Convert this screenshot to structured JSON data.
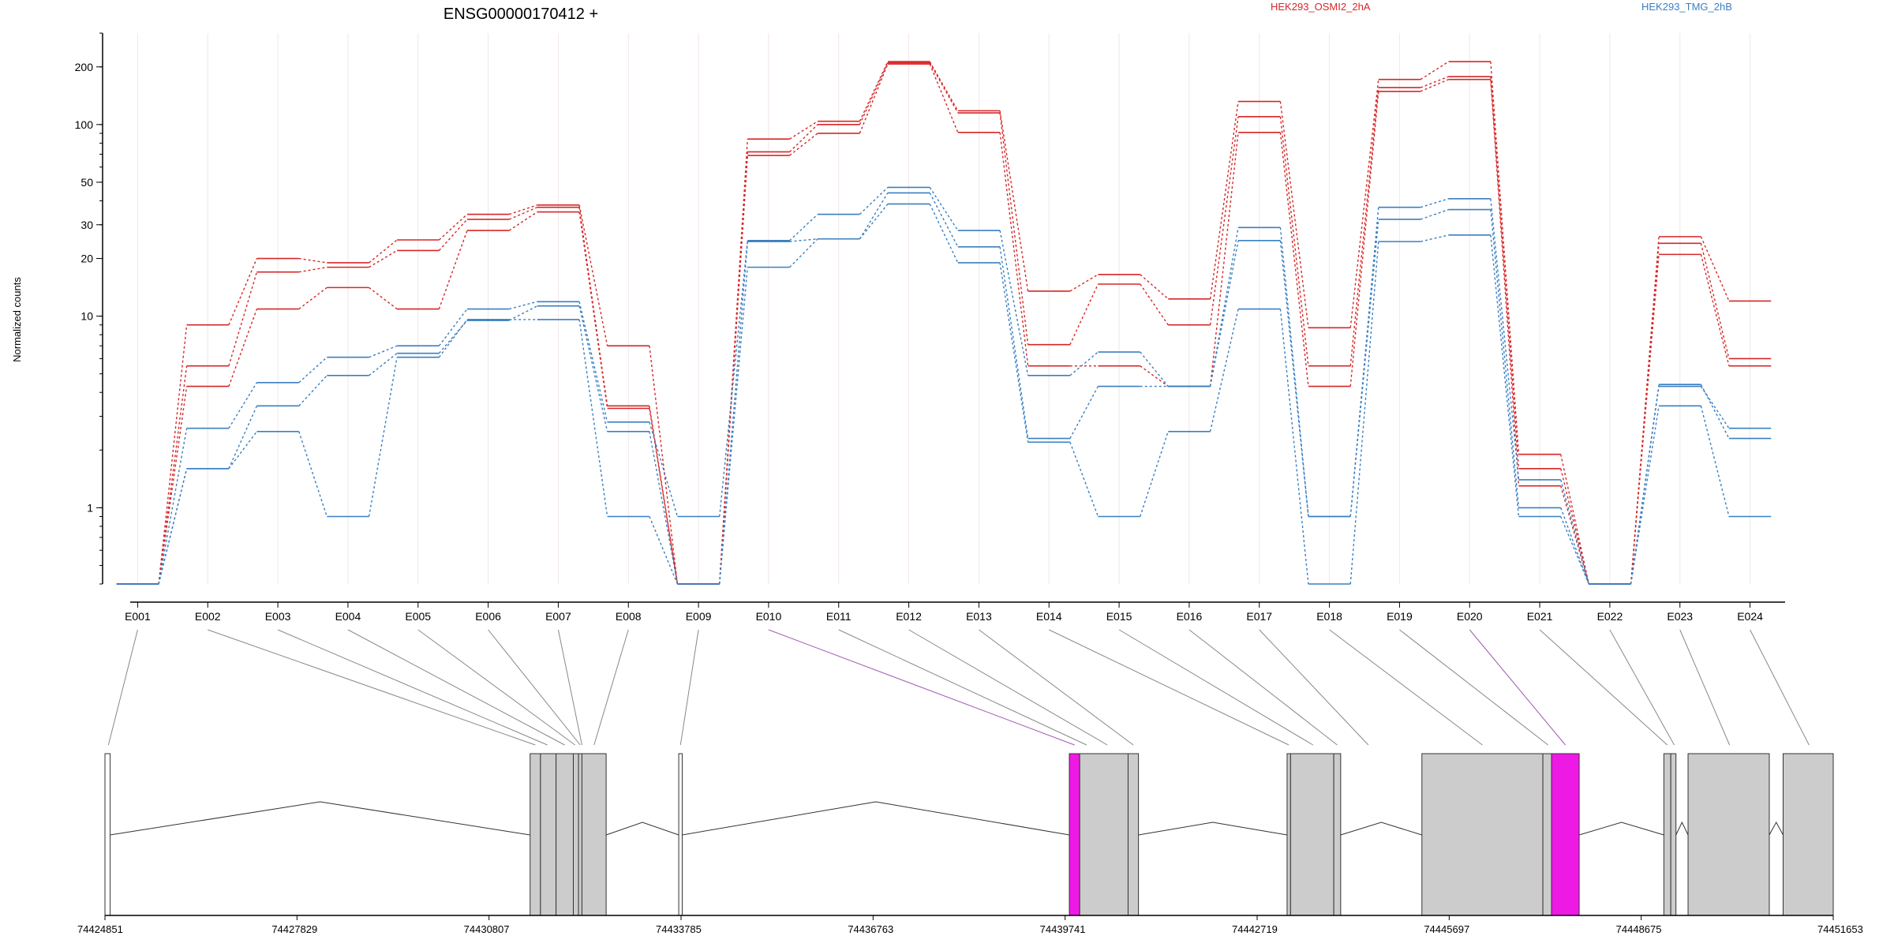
{
  "title": "ENSG00000170412 +",
  "ylabel": "Normalized counts",
  "legend": [
    {
      "label": "HEK293_OSMI2_2hA",
      "color": "#d62728"
    },
    {
      "label": "HEK293_TMG_2hB",
      "color": "#3a7fc1"
    }
  ],
  "chart_data": {
    "type": "line",
    "title": "ENSG00000170412 +",
    "xlabel": "",
    "ylabel": "Normalized counts",
    "yscale": "log",
    "ylim": [
      0.4,
      300
    ],
    "yticks": [
      1,
      10,
      20,
      30,
      50,
      100,
      200
    ],
    "grid": true,
    "legend_position": "top-right",
    "categories": [
      "E001",
      "E002",
      "E003",
      "E004",
      "E005",
      "E006",
      "E007",
      "E008",
      "E009",
      "E010",
      "E011",
      "E012",
      "E013",
      "E014",
      "E015",
      "E016",
      "E017",
      "E018",
      "E019",
      "E020",
      "E021",
      "E022",
      "E023",
      "E024"
    ],
    "series": [
      {
        "group": "HEK293_OSMI2_2hA",
        "color": "#d62728",
        "values": [
          0.4,
          9,
          20,
          19,
          25,
          34,
          38,
          7,
          0.4,
          84,
          104,
          213,
          118,
          13.5,
          16.5,
          12.3,
          132,
          8.7,
          172,
          213,
          1.9,
          0.4,
          26,
          12
        ]
      },
      {
        "group": "HEK293_OSMI2_2hA",
        "color": "#d62728",
        "values": [
          0.4,
          5.5,
          17,
          18,
          22,
          32,
          37,
          3.4,
          0.4,
          72,
          100,
          210,
          115,
          7.1,
          14.7,
          9.0,
          110,
          5.5,
          156,
          178,
          1.6,
          0.4,
          24,
          6
        ]
      },
      {
        "group": "HEK293_OSMI2_2hA",
        "color": "#d62728",
        "values": [
          0.4,
          4.3,
          10.9,
          14.1,
          10.9,
          28,
          35,
          3.3,
          0.4,
          69,
          90,
          207,
          91,
          5.5,
          5.5,
          4.3,
          91,
          4.3,
          149,
          172,
          1.3,
          0.4,
          21,
          5.5
        ]
      },
      {
        "group": "HEK293_TMG_2hB",
        "color": "#3a7fc1",
        "values": [
          0.4,
          2.6,
          4.5,
          6.1,
          7.0,
          10.9,
          11.9,
          2.8,
          0.9,
          24.8,
          34,
          47,
          28,
          4.9,
          6.5,
          4.3,
          29,
          0.9,
          37,
          41,
          1.4,
          0.4,
          4.3,
          2.6
        ]
      },
      {
        "group": "HEK293_TMG_2hB",
        "color": "#3a7fc1",
        "values": [
          0.4,
          1.6,
          3.4,
          4.9,
          6.4,
          9.5,
          11.3,
          2.5,
          0.4,
          24.5,
          25.3,
          44,
          23,
          2.3,
          4.3,
          4.3,
          24.8,
          0.9,
          32,
          36,
          1.0,
          0.4,
          4.4,
          2.3
        ]
      },
      {
        "group": "HEK293_TMG_2hB",
        "color": "#3a7fc1",
        "values": [
          0.4,
          1.6,
          2.5,
          0.9,
          6.1,
          9.6,
          9.6,
          0.9,
          0.4,
          18,
          25.3,
          38.5,
          19,
          2.2,
          0.9,
          2.5,
          10.9,
          0.4,
          24.5,
          26.5,
          0.9,
          0.4,
          3.4,
          0.9
        ]
      }
    ],
    "xaxis_coordinates": [
      "74424851",
      "74427829",
      "74430807",
      "74433785",
      "74436763",
      "74439741",
      "74442719",
      "74445697",
      "74448675",
      "74451653"
    ]
  }
}
